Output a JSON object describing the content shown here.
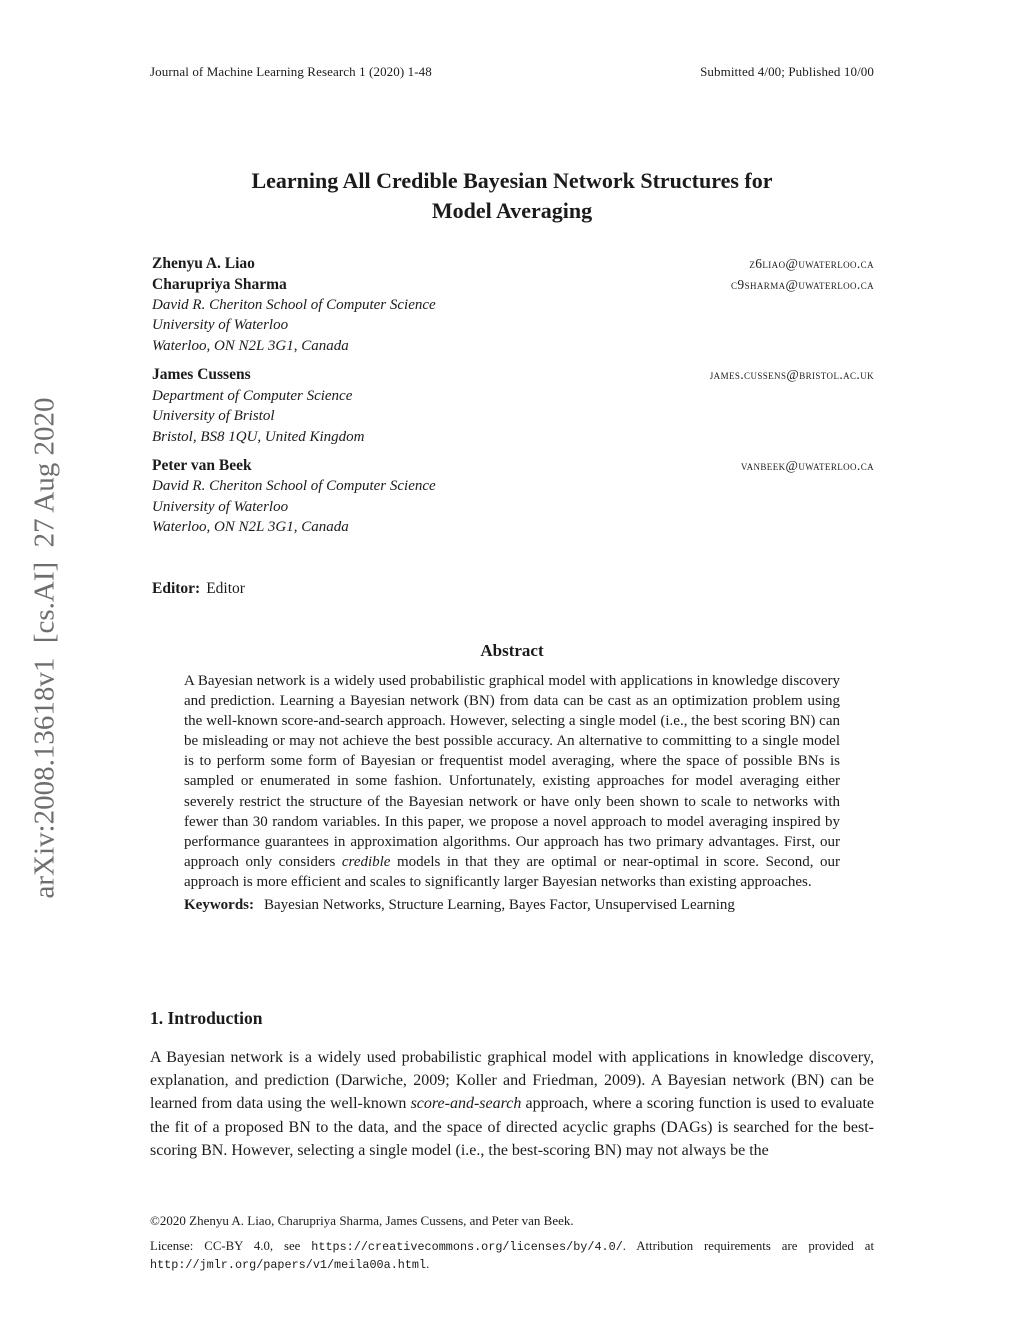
{
  "header": {
    "left": "Journal of Machine Learning Research 1 (2020) 1-48",
    "right": "Submitted 4/00; Published 10/00"
  },
  "arxiv_stamp": "arXiv:2008.13618v1  [cs.AI]  27 Aug 2020",
  "title": {
    "line1": "Learning All Credible Bayesian Network Structures for",
    "line2": "Model Averaging"
  },
  "authors": [
    {
      "people": [
        {
          "name": "Zhenyu A. Liao",
          "email": "z6liao@uwaterloo.ca"
        },
        {
          "name": "Charupriya Sharma",
          "email": "c9sharma@uwaterloo.ca"
        }
      ],
      "affiliation": [
        "David R. Cheriton School of Computer Science",
        "University of Waterloo",
        "Waterloo, ON N2L 3G1, Canada"
      ]
    },
    {
      "people": [
        {
          "name": "James Cussens",
          "email": "james.cussens@bristol.ac.uk"
        }
      ],
      "affiliation": [
        "Department of Computer Science",
        "University of Bristol",
        "Bristol, BS8 1QU, United Kingdom"
      ]
    },
    {
      "people": [
        {
          "name": "Peter van Beek",
          "email": "vanbeek@uwaterloo.ca"
        }
      ],
      "affiliation": [
        "David R. Cheriton School of Computer Science",
        "University of Waterloo",
        "Waterloo, ON N2L 3G1, Canada"
      ]
    }
  ],
  "editor": {
    "label": "Editor:",
    "value": "Editor"
  },
  "abstract": {
    "heading": "Abstract",
    "body_1": "A Bayesian network is a widely used probabilistic graphical model with applications in knowledge discovery and prediction. Learning a Bayesian network (BN) from data can be cast as an optimization problem using the well-known score-and-search approach. However, selecting a single model (i.e., the best scoring BN) can be misleading or may not achieve the best possible accuracy. An alternative to committing to a single model is to perform some form of Bayesian or frequentist model averaging, where the space of possible BNs is sampled or enumerated in some fashion. Unfortunately, existing approaches for model averaging either severely restrict the structure of the Bayesian network or have only been shown to scale to networks with fewer than 30 random variables. In this paper, we propose a novel approach to model averaging inspired by performance guarantees in approximation algorithms. Our approach has two primary advantages. First, our approach only considers ",
    "emphasis": "credible",
    "body_2": " models in that they are optimal or near-optimal in score. Second, our approach is more efficient and scales to significantly larger Bayesian networks than existing approaches.",
    "keywords_label": "Keywords:",
    "keywords": "Bayesian Networks, Structure Learning, Bayes Factor, Unsupervised Learning"
  },
  "introduction": {
    "heading": "1. Introduction",
    "p1_before": "A Bayesian network is a widely used probabilistic graphical model with applications in knowledge discovery, explanation, and prediction (Darwiche, 2009; Koller and Friedman, 2009). A Bayesian network (BN) can be learned from data using the well-known ",
    "p1_emphasis": "score-and-search",
    "p1_after": " approach, where a scoring function is used to evaluate the fit of a proposed BN to the data, and the space of directed acyclic graphs (DAGs) is searched for the best-scoring BN. However, selecting a single model (i.e., the best-scoring BN) may not always be the"
  },
  "footer": {
    "copyright": "©2020 Zhenyu A. Liao, Charupriya Sharma, James Cussens, and Peter van Beek.",
    "license_1": "License: CC-BY 4.0, see ",
    "license_url_1": "https://creativecommons.org/licenses/by/4.0/",
    "license_2": ". Attribution requirements are provided at ",
    "license_url_2": "http://jmlr.org/papers/v1/meila00a.html",
    "license_3": "."
  },
  "colors": {
    "text": "#1b1b1b",
    "stamp_gray": "#6e6e6e",
    "background": "#ffffff"
  }
}
